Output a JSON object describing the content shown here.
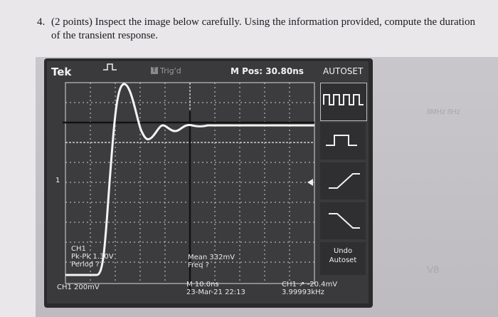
{
  "question": {
    "number": "4.",
    "text": "(2 points) Inspect the image below carefully. Using the information provided, compute the duration of the transient response."
  },
  "scope": {
    "brand": "Tek",
    "trigger_status": "Trig'd",
    "trigger_status_badge": "T",
    "m_pos": "M Pos: 30.80ns",
    "autoset": "AUTOSET",
    "undo_label": "Undo",
    "autoset_label": "Autoset",
    "channel_marker": "1",
    "measurements": {
      "ch_label": "CH1",
      "pk_pk": "Pk-Pk 1.30V",
      "period": "Period ?",
      "mean": "Mean 332mV",
      "freq": "Freq ?",
      "ch_scale": "CH1  200mV",
      "time_scale": "M 10.0ns",
      "date": "23-Mar-21 22:13",
      "trigger_level": "CH1 ↗ -20.4mV",
      "trigger_freq": "3.99993kHz"
    }
  },
  "background_text": {
    "faint_1": "8MHz 8Hz",
    "faint_2": "V8"
  },
  "colors": {
    "trace": "#f4f4f4",
    "screen": "#3a3a3c",
    "grid": "#cfcfcf"
  }
}
